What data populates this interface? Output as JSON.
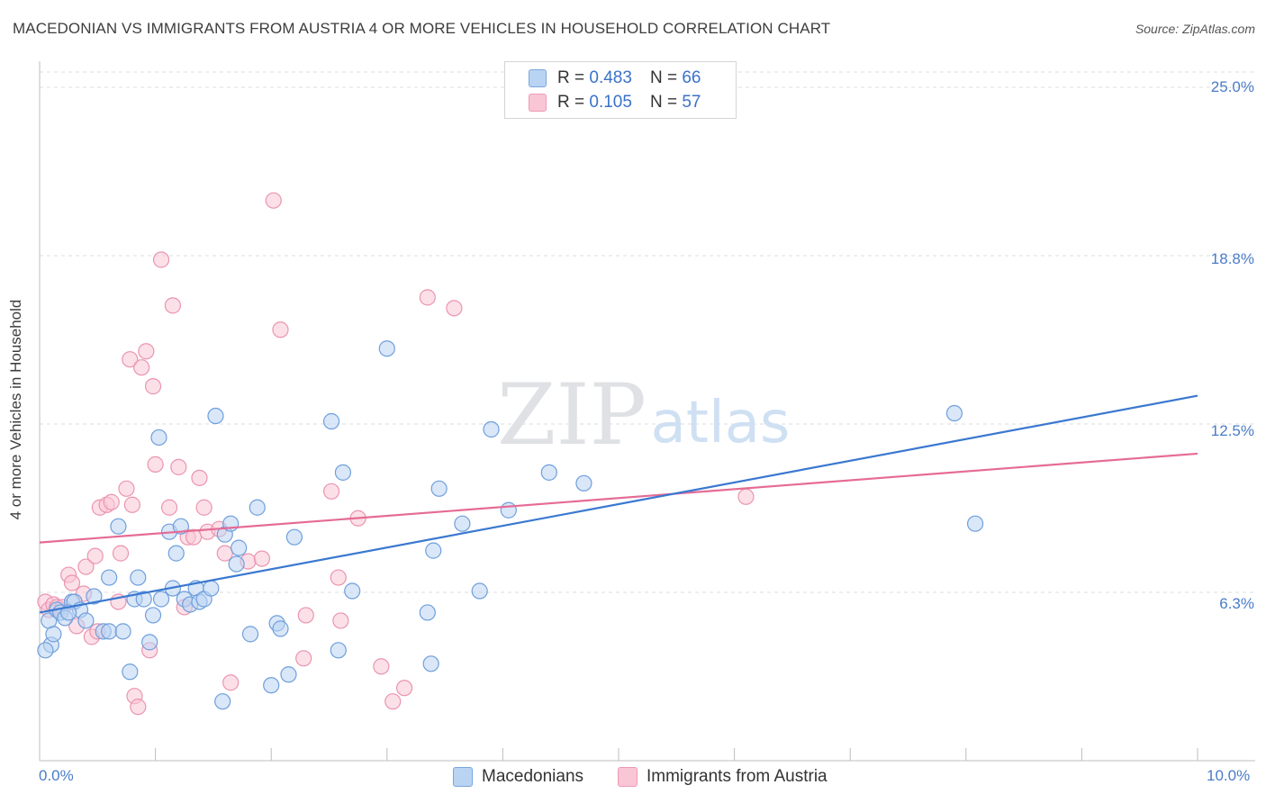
{
  "title": "MACEDONIAN VS IMMIGRANTS FROM AUSTRIA 4 OR MORE VEHICLES IN HOUSEHOLD CORRELATION CHART",
  "source": "Source: ZipAtlas.com",
  "watermark": {
    "zip": "ZIP",
    "atlas": "atlas"
  },
  "legend_top": [
    {
      "r_label": "R =",
      "r_value": "0.483",
      "n_label": "N =",
      "n_value": "66"
    },
    {
      "r_label": "R =",
      "r_value": "0.105",
      "n_label": "N =",
      "n_value": "57"
    }
  ],
  "legend_bottom": [
    "Macedonians",
    "Immigrants from Austria"
  ],
  "colors": {
    "blue_fill": "#b9d3f2",
    "blue_stroke": "#6f9fdc",
    "blue_line": "#3a78d0",
    "pink_fill": "#f9c6d6",
    "pink_stroke": "#eb94b1",
    "pink_line": "#e56b95",
    "tick_text": "#4a7cc9",
    "grid": "#dcdcdc"
  },
  "chart_data": {
    "type": "scatter",
    "title": "MACEDONIAN VS IMMIGRANTS FROM AUSTRIA 4 OR MORE VEHICLES IN HOUSEHOLD CORRELATION CHART",
    "xlabel": "",
    "ylabel": "4 or more Vehicles in Household",
    "xlim": [
      0.0,
      10.0
    ],
    "ylim": [
      0.0,
      25.0
    ],
    "x_tick_labels": [
      {
        "value": 0.0,
        "label": "0.0%"
      },
      {
        "value": 10.0,
        "label": "10.0%"
      }
    ],
    "y_tick_labels": [
      {
        "value": 6.25,
        "label": "6.3%"
      },
      {
        "value": 12.5,
        "label": "12.5%"
      },
      {
        "value": 18.75,
        "label": "18.8%"
      },
      {
        "value": 25.0,
        "label": "25.0%"
      }
    ],
    "series": [
      {
        "name": "Macedonians",
        "r": 0.483,
        "n": 66,
        "trend": {
          "x0": 0.0,
          "y0": 5.5,
          "x1": 10.0,
          "y1": 13.55
        },
        "points": [
          [
            0.08,
            5.2
          ],
          [
            0.1,
            4.3
          ],
          [
            0.12,
            4.7
          ],
          [
            0.15,
            5.6
          ],
          [
            0.18,
            5.5
          ],
          [
            0.22,
            5.3
          ],
          [
            0.28,
            5.9
          ],
          [
            0.3,
            5.9
          ],
          [
            0.35,
            5.6
          ],
          [
            0.4,
            5.2
          ],
          [
            0.47,
            6.1
          ],
          [
            0.55,
            4.8
          ],
          [
            0.6,
            4.8
          ],
          [
            0.6,
            6.8
          ],
          [
            0.68,
            8.7
          ],
          [
            0.72,
            4.8
          ],
          [
            0.78,
            3.3
          ],
          [
            0.82,
            6.0
          ],
          [
            0.85,
            6.8
          ],
          [
            0.9,
            6.0
          ],
          [
            0.95,
            4.4
          ],
          [
            0.98,
            5.4
          ],
          [
            1.03,
            12.0
          ],
          [
            1.05,
            6.0
          ],
          [
            1.12,
            8.5
          ],
          [
            1.15,
            6.4
          ],
          [
            1.18,
            7.7
          ],
          [
            1.22,
            8.7
          ],
          [
            1.25,
            6.0
          ],
          [
            1.3,
            5.8
          ],
          [
            1.35,
            6.4
          ],
          [
            1.38,
            5.9
          ],
          [
            1.42,
            6.0
          ],
          [
            1.48,
            6.4
          ],
          [
            1.52,
            12.8
          ],
          [
            1.58,
            2.2
          ],
          [
            1.6,
            8.4
          ],
          [
            1.65,
            8.8
          ],
          [
            1.7,
            7.3
          ],
          [
            1.72,
            7.9
          ],
          [
            1.88,
            9.4
          ],
          [
            1.82,
            4.7
          ],
          [
            2.0,
            2.8
          ],
          [
            2.05,
            5.1
          ],
          [
            2.08,
            4.9
          ],
          [
            2.15,
            3.2
          ],
          [
            2.2,
            8.3
          ],
          [
            2.52,
            12.6
          ],
          [
            2.58,
            4.1
          ],
          [
            2.62,
            10.7
          ],
          [
            2.7,
            6.3
          ],
          [
            3.0,
            15.3
          ],
          [
            3.35,
            5.5
          ],
          [
            3.38,
            3.6
          ],
          [
            3.4,
            7.8
          ],
          [
            3.45,
            10.1
          ],
          [
            3.65,
            8.8
          ],
          [
            3.8,
            6.3
          ],
          [
            3.9,
            12.3
          ],
          [
            4.05,
            9.3
          ],
          [
            4.4,
            10.7
          ],
          [
            4.7,
            10.3
          ],
          [
            7.9,
            12.9
          ],
          [
            8.08,
            8.8
          ],
          [
            0.05,
            4.1
          ],
          [
            0.25,
            5.5
          ]
        ]
      },
      {
        "name": "Immigrants from Austria",
        "r": 0.105,
        "n": 57,
        "trend": {
          "x0": 0.0,
          "y0": 8.1,
          "x1": 10.0,
          "y1": 11.4
        },
        "points": [
          [
            0.05,
            5.9
          ],
          [
            0.08,
            5.6
          ],
          [
            0.12,
            5.8
          ],
          [
            0.15,
            5.7
          ],
          [
            0.2,
            5.7
          ],
          [
            0.25,
            6.9
          ],
          [
            0.28,
            6.6
          ],
          [
            0.32,
            5.0
          ],
          [
            0.38,
            6.2
          ],
          [
            0.4,
            7.2
          ],
          [
            0.45,
            4.6
          ],
          [
            0.48,
            7.6
          ],
          [
            0.5,
            4.8
          ],
          [
            0.52,
            9.4
          ],
          [
            0.58,
            9.5
          ],
          [
            0.62,
            9.6
          ],
          [
            0.68,
            5.9
          ],
          [
            0.7,
            7.7
          ],
          [
            0.75,
            10.1
          ],
          [
            0.78,
            14.9
          ],
          [
            0.8,
            9.5
          ],
          [
            0.82,
            2.4
          ],
          [
            0.85,
            2.0
          ],
          [
            0.88,
            14.6
          ],
          [
            0.92,
            15.2
          ],
          [
            0.95,
            4.1
          ],
          [
            0.98,
            13.9
          ],
          [
            1.0,
            11.0
          ],
          [
            1.05,
            18.6
          ],
          [
            1.12,
            9.4
          ],
          [
            1.15,
            16.9
          ],
          [
            1.2,
            10.9
          ],
          [
            1.25,
            5.7
          ],
          [
            1.28,
            8.3
          ],
          [
            1.33,
            8.3
          ],
          [
            1.38,
            10.5
          ],
          [
            1.42,
            9.4
          ],
          [
            1.45,
            8.5
          ],
          [
            1.55,
            8.6
          ],
          [
            1.6,
            7.7
          ],
          [
            1.65,
            2.9
          ],
          [
            1.8,
            7.4
          ],
          [
            1.92,
            7.5
          ],
          [
            2.02,
            20.8
          ],
          [
            2.08,
            16.0
          ],
          [
            2.28,
            3.8
          ],
          [
            2.3,
            5.4
          ],
          [
            2.52,
            10.0
          ],
          [
            2.58,
            6.8
          ],
          [
            2.6,
            5.2
          ],
          [
            2.75,
            9.0
          ],
          [
            2.95,
            3.5
          ],
          [
            3.05,
            2.2
          ],
          [
            3.15,
            2.7
          ],
          [
            3.35,
            17.2
          ],
          [
            3.58,
            16.8
          ],
          [
            6.1,
            9.8
          ]
        ]
      }
    ]
  }
}
